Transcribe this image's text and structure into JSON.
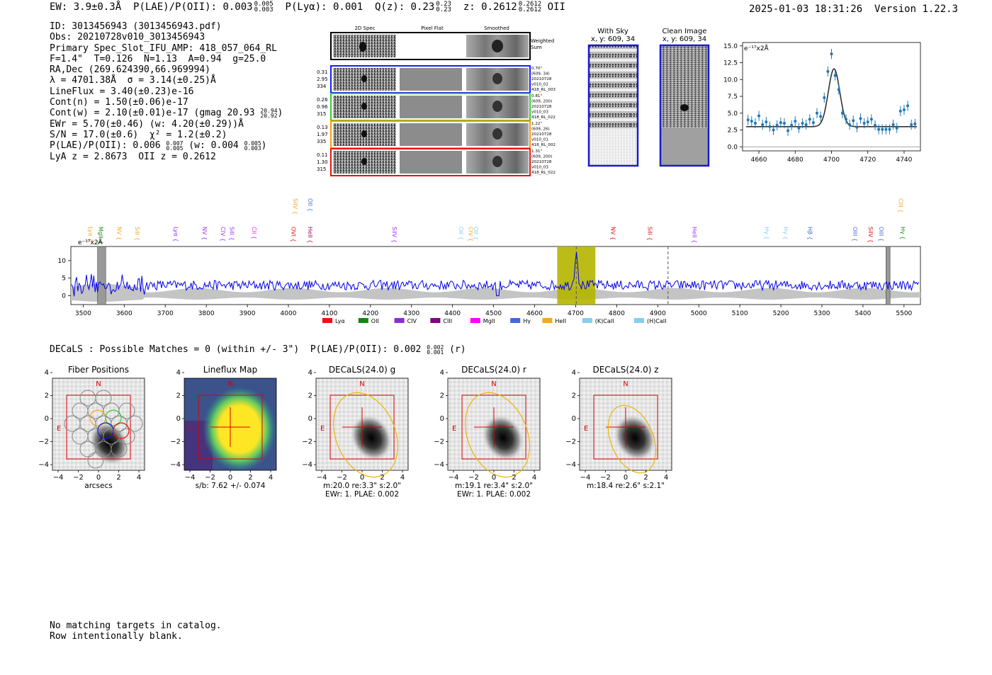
{
  "header": {
    "ew": "EW: 3.9±0.3Å",
    "plae": "P(LAE)/P(OII): 0.003",
    "plae_hi": "0.005",
    "plae_lo": "0.003",
    "plya": "P(Lyα): 0.001",
    "qz": "Q(z): 0.23",
    "qz_hi": "0.23",
    "qz_lo": "0.23",
    "z": "z: 0.2612",
    "z_hi": "0.2612",
    "z_lo": "0.2612",
    "z_line": "OII",
    "timestamp": "2025-01-03 18:31:26",
    "version": "Version 1.22.3"
  },
  "info": {
    "id": "ID: 3013456943 (3013456943.pdf)",
    "obs": "Obs: 20210728v010_3013456943",
    "primary": "Primary Spec_Slot_IFU_AMP: 418_057_064_RL",
    "fiber": "F=1.4\"  T=0.126  N=1.13  A=0.94  g=25.0",
    "radec": "RA,Dec (269.624390,66.969994)",
    "lambda": "λ = 4701.38Å  σ = 3.14(±0.25)Å",
    "lineflux": "LineFlux = 3.40(±0.23)e-16",
    "contn": "Cont(n) = 1.50(±0.06)e-17",
    "contw": "Cont(w) = 2.10(±0.01)e-17 (gmag 20.93",
    "contw_hi": "20.94",
    "contw_lo": "20.92",
    "contw_end": ")",
    "ewr": "EWr = 5.70(±0.46) (w: 4.20(±0.29))Å",
    "sn": "S/N = 17.0(±0.6)  χ² = 1.2(±0.2)",
    "plae": "P(LAE)/P(OII): 0.006",
    "plae_hi": "0.007",
    "plae_lo": "0.005",
    "plae_w": "(w: 0.004",
    "plae_w_hi": "0.005",
    "plae_w_lo": "0.003",
    "plae_end": ")",
    "redshifts": "LyA z = 2.8673  OII z = 0.2612"
  },
  "cutouts": {
    "col_2d": "2D Spec",
    "col_flat": "Pixel Flat",
    "col_smooth": "Smoothed",
    "weighted": "Weighted",
    "sum": "Sum",
    "rows": [
      {
        "w": "0.31",
        "s": "2.95",
        "n": "334",
        "d1": "0.70\"",
        "d2": "(609, 34)",
        "d3": "20210728",
        "d4": "v010_02",
        "d5": "418_RL_003",
        "color": "#1a1aff"
      },
      {
        "w": "0.26",
        "s": "0.96",
        "n": "315",
        "d1": "0.81\"",
        "d2": "(609, 200)",
        "d3": "20210728",
        "d4": "v010_03",
        "d5": "418_RL_022",
        "color": "#33cc33"
      },
      {
        "w": "0.13",
        "s": "1.97",
        "n": "335",
        "d1": "1.22\"",
        "d2": "(609, 26)",
        "d3": "20210728",
        "d4": "v010_01",
        "d5": "418_RL_002",
        "color": "#ff9900"
      },
      {
        "w": "0.11",
        "s": "1.30",
        "n": "315",
        "d1": "1.31\"",
        "d2": "(609, 200)",
        "d3": "20210728",
        "d4": "v010_03",
        "d5": "418_RL_022",
        "color": "#ee1111"
      }
    ],
    "with_sky": "With Sky",
    "with_sky_xy": "x, y: 609, 34",
    "clean": "Clean Image",
    "clean_xy": "x, y: 609, 34"
  },
  "decals_header": {
    "text": "DECaLS : Possible Matches = 0 (within +/- 3\")  P(LAE)/P(OII): 0.002",
    "hi": "0.002",
    "lo": "0.001",
    "end": "(r)"
  },
  "panels": [
    {
      "title": "Fiber Positions",
      "cap1": "arcsecs",
      "cap2": ""
    },
    {
      "title": "Lineflux Map",
      "cap1": "s/b: 7.62 +/- 0.074",
      "cap2": ""
    },
    {
      "title": "DECaLS(24.0) g",
      "cap1": "m:20.0  re:3.3\"  s:2.0\"",
      "cap2": "EWr: 1. PLAE: 0.002"
    },
    {
      "title": "DECaLS(24.0) r",
      "cap1": "m:19.1  re:3.4\"  s:2.0\"",
      "cap2": "EWr: 1. PLAE: 0.002"
    },
    {
      "title": "DECaLS(24.0) z",
      "cap1": "m:18.4  re:2.6\"  s:2.1\"",
      "cap2": ""
    }
  ],
  "panel_ticks": [
    "−4",
    "−2",
    "0",
    "2",
    "4"
  ],
  "panel_n": "N",
  "panel_e": "E",
  "footer": {
    "line1": "No matching targets in catalog.",
    "line2": "Row intentionally blank."
  },
  "colors": {
    "spectrum": "#0000ee",
    "fit_point": "#1f77b4",
    "highlight": "#b5b500",
    "aperture": "#dd0000",
    "ellipse": "#f0b400"
  },
  "chart_data": [
    {
      "type": "scatter",
      "title": "",
      "units": "e⁻¹⁷x2Å",
      "xlabel": "",
      "ylabel": "",
      "xlim": [
        4651,
        4749
      ],
      "ylim": [
        -0.6,
        15.5
      ],
      "xticks": [
        4660,
        4680,
        4700,
        4720,
        4740
      ],
      "yticks": [
        0.0,
        2.5,
        5.0,
        7.5,
        10.0,
        12.5,
        15.0
      ],
      "points": [
        [
          4654,
          4.0
        ],
        [
          4656,
          3.8
        ],
        [
          4658,
          3.5
        ],
        [
          4660,
          4.6
        ],
        [
          4662,
          3.3
        ],
        [
          4664,
          3.7
        ],
        [
          4666,
          3.0
        ],
        [
          4668,
          2.5
        ],
        [
          4670,
          3.2
        ],
        [
          4672,
          3.6
        ],
        [
          4674,
          3.5
        ],
        [
          4676,
          2.4
        ],
        [
          4678,
          3.2
        ],
        [
          4680,
          3.8
        ],
        [
          4682,
          2.8
        ],
        [
          4684,
          3.5
        ],
        [
          4686,
          3.3
        ],
        [
          4688,
          4.1
        ],
        [
          4690,
          3.6
        ],
        [
          4692,
          5.0
        ],
        [
          4694,
          4.5
        ],
        [
          4696,
          7.3
        ],
        [
          4698,
          11.2
        ],
        [
          4700,
          13.8
        ],
        [
          4702,
          10.6
        ],
        [
          4704,
          8.5
        ],
        [
          4706,
          5.0
        ],
        [
          4708,
          4.1
        ],
        [
          4710,
          3.3
        ],
        [
          4712,
          3.9
        ],
        [
          4714,
          2.9
        ],
        [
          4716,
          4.2
        ],
        [
          4718,
          3.5
        ],
        [
          4720,
          3.7
        ],
        [
          4722,
          4.1
        ],
        [
          4724,
          3.2
        ],
        [
          4726,
          2.6
        ],
        [
          4728,
          2.6
        ],
        [
          4730,
          2.6
        ],
        [
          4732,
          2.6
        ],
        [
          4734,
          3.3
        ],
        [
          4736,
          2.8
        ],
        [
          4738,
          5.3
        ],
        [
          4740,
          5.5
        ],
        [
          4742,
          6.1
        ],
        [
          4744,
          3.3
        ],
        [
          4746,
          3.4
        ]
      ],
      "fit": {
        "continuum": 3.0,
        "amp": 8.6,
        "center": 4701.4,
        "sigma": 3.14
      }
    },
    {
      "type": "line",
      "title": "",
      "units": "e⁻¹⁷x2Å",
      "xlim": [
        3470,
        5540
      ],
      "ylim": [
        -2.5,
        14
      ],
      "xticks": [
        3500,
        3600,
        3700,
        3800,
        3900,
        4000,
        4100,
        4200,
        4300,
        4400,
        4500,
        4600,
        4700,
        4800,
        4900,
        5000,
        5100,
        5200,
        5300,
        5400,
        5500
      ],
      "yticks": [
        0,
        5,
        10
      ],
      "continuum": 3.0,
      "emission_peak": {
        "x": 4701.4,
        "y": 13.0
      },
      "highlight_range": [
        4655,
        4748
      ],
      "dashed_lines": [
        4701.4,
        4925
      ],
      "masked_ranges": [
        [
          3535,
          3555
        ],
        [
          5456,
          5466
        ]
      ],
      "line_labels": [
        {
          "name": "Lyα",
          "x": 3508,
          "color": "#f5a623",
          "row": "low"
        },
        {
          "name": "MgII",
          "x": 3533,
          "color": "#1b8a1b",
          "row": "low"
        },
        {
          "name": "NV",
          "x": 3578,
          "color": "#f5a623",
          "row": "low"
        },
        {
          "name": "SiII",
          "x": 3622,
          "color": "#f5a623",
          "row": "low"
        },
        {
          "name": "Lyα",
          "x": 3716,
          "color": "#9b30ff",
          "row": "low"
        },
        {
          "name": "NV",
          "x": 3786,
          "color": "#9b30ff",
          "row": "low"
        },
        {
          "name": "CIV",
          "x": 3831,
          "color": "#9b30ff",
          "row": "low"
        },
        {
          "name": "SiII",
          "x": 3852,
          "color": "#9b30ff",
          "row": "low"
        },
        {
          "name": "CII",
          "x": 3907,
          "color": "#ee22ee",
          "row": "low"
        },
        {
          "name": "SiIV",
          "x": 4007,
          "color": "#f5a623",
          "row": "high"
        },
        {
          "name": "OII",
          "x": 4043,
          "color": "#4a6ee0",
          "row": "high"
        },
        {
          "name": "OVI",
          "x": 4003,
          "color": "#dd1111",
          "row": "low"
        },
        {
          "name": "HeII",
          "x": 4043,
          "color": "#9b1060",
          "row": "low"
        },
        {
          "name": "SiIV",
          "x": 4249,
          "color": "#9b30ff",
          "row": "low"
        },
        {
          "name": "OII",
          "x": 4411,
          "color": "#87ceeb",
          "row": "low"
        },
        {
          "name": "CIV",
          "x": 4434,
          "color": "#f5a623",
          "row": "low"
        },
        {
          "name": "OII",
          "x": 4447,
          "color": "#87ceeb",
          "row": "low"
        },
        {
          "name": "NV",
          "x": 4781,
          "color": "#dd1111",
          "row": "low"
        },
        {
          "name": "SiII",
          "x": 4871,
          "color": "#dd1111",
          "row": "low"
        },
        {
          "name": "HeII",
          "x": 4980,
          "color": "#9b30ff",
          "row": "low"
        },
        {
          "name": "Hγ",
          "x": 5156,
          "color": "#87ceeb",
          "row": "low"
        },
        {
          "name": "Hγ",
          "x": 5202,
          "color": "#87ceeb",
          "row": "low"
        },
        {
          "name": "Hβ",
          "x": 5261,
          "color": "#4a6ee0",
          "row": "low"
        },
        {
          "name": "OIII",
          "x": 5371,
          "color": "#4a6ee0",
          "row": "low"
        },
        {
          "name": "SiIV",
          "x": 5409,
          "color": "#dd1111",
          "row": "low"
        },
        {
          "name": "OIII",
          "x": 5435,
          "color": "#4a6ee0",
          "row": "low"
        },
        {
          "name": "CIII",
          "x": 5482,
          "color": "#f5a623",
          "row": "high"
        },
        {
          "name": "Hγ",
          "x": 5487,
          "color": "#1b8a1b",
          "row": "low"
        }
      ],
      "legend": [
        {
          "name": "Lyα",
          "color": "#ee1111"
        },
        {
          "name": "OII",
          "color": "#118811"
        },
        {
          "name": "CIV",
          "color": "#8a2be2"
        },
        {
          "name": "CIII",
          "color": "#800080"
        },
        {
          "name": "MgII",
          "color": "#ff00ff"
        },
        {
          "name": "Hγ",
          "color": "#4169e1"
        },
        {
          "name": "HeII",
          "color": "#f5a623"
        },
        {
          "name": "(K)CaII",
          "color": "#87ceeb"
        },
        {
          "name": "(H)CaII",
          "color": "#87ceeb"
        }
      ]
    }
  ]
}
